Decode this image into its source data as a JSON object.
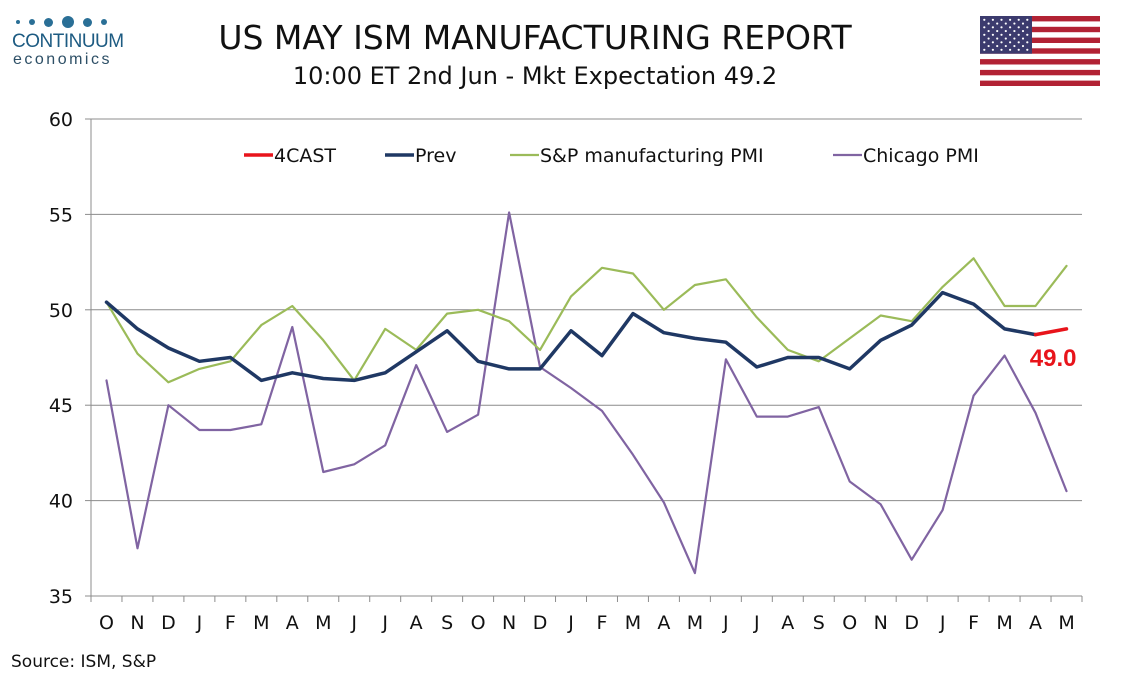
{
  "logo": {
    "name": "CONTINUUM",
    "sub": "economics"
  },
  "header": {
    "title": "US MAY ISM MANUFACTURING REPORT",
    "subtitle": "10:00 ET 2nd Jun - Mkt Expectation 49.2"
  },
  "flag_icon": "us-flag-icon",
  "source": "Source: ISM, S&P",
  "chart_data": {
    "type": "line",
    "categories": [
      "O",
      "N",
      "D",
      "J",
      "F",
      "M",
      "A",
      "M",
      "J",
      "J",
      "A",
      "S",
      "O",
      "N",
      "D",
      "J",
      "F",
      "M",
      "A",
      "M",
      "J",
      "J",
      "A",
      "S",
      "O",
      "N",
      "D",
      "J",
      "F",
      "M",
      "A",
      "M"
    ],
    "ylim": [
      35,
      60
    ],
    "yticks": [
      35,
      40,
      45,
      50,
      55,
      60
    ],
    "grid": true,
    "legend_position": "top",
    "series": [
      {
        "name": "4CAST",
        "color": "#e8141b",
        "values": [
          null,
          null,
          null,
          null,
          null,
          null,
          null,
          null,
          null,
          null,
          null,
          null,
          null,
          null,
          null,
          null,
          null,
          null,
          null,
          null,
          null,
          null,
          null,
          null,
          null,
          null,
          null,
          null,
          null,
          null,
          48.7,
          49.0
        ]
      },
      {
        "name": "Prev",
        "color": "#1f3864",
        "values": [
          50.4,
          49.0,
          48.0,
          47.3,
          47.5,
          46.3,
          46.7,
          46.4,
          46.3,
          46.7,
          47.8,
          48.9,
          47.3,
          46.9,
          46.9,
          48.9,
          47.6,
          49.8,
          48.8,
          48.5,
          48.3,
          47.0,
          47.5,
          47.5,
          46.9,
          48.4,
          49.2,
          50.9,
          50.3,
          49.0,
          48.7,
          null
        ]
      },
      {
        "name": "S&P manufacturing PMI",
        "color": "#9bbb59",
        "values": [
          50.4,
          47.7,
          46.2,
          46.9,
          47.3,
          49.2,
          50.2,
          48.4,
          46.3,
          49.0,
          47.9,
          49.8,
          50.0,
          49.4,
          47.9,
          50.7,
          52.2,
          51.9,
          50.0,
          51.3,
          51.6,
          49.6,
          47.9,
          47.3,
          48.5,
          49.7,
          49.4,
          51.2,
          52.7,
          50.2,
          50.2,
          52.3
        ]
      },
      {
        "name": "Chicago PMI",
        "color": "#8064a2",
        "values": [
          46.3,
          37.5,
          45.0,
          43.7,
          43.7,
          44.0,
          49.1,
          41.5,
          41.9,
          42.9,
          47.1,
          43.6,
          44.5,
          55.1,
          47.0,
          45.9,
          44.7,
          42.4,
          39.9,
          36.2,
          47.4,
          44.4,
          44.4,
          44.9,
          41.0,
          39.8,
          36.9,
          39.5,
          45.5,
          47.6,
          44.6,
          40.5
        ]
      }
    ],
    "annotation": {
      "text": "49.0"
    }
  }
}
